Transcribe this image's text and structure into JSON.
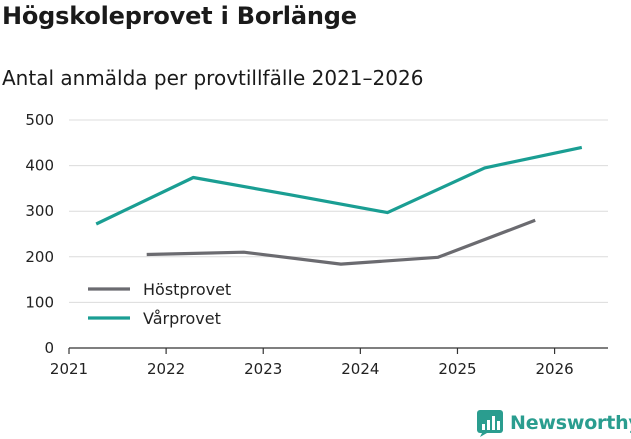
{
  "chart_data": {
    "type": "line",
    "title": "Högskoleprovet i Borlänge",
    "subtitle": "Antal anmälda per provtillfälle 2021–2026",
    "xlabel": "",
    "ylabel": "",
    "ylim": [
      0,
      500
    ],
    "yticks": [
      0,
      100,
      200,
      300,
      400,
      500
    ],
    "xlim": [
      2021,
      2026.55
    ],
    "xticks": [
      "2021",
      "2022",
      "2023",
      "2024",
      "2025",
      "2026"
    ],
    "grid": true,
    "legend_position": "bottom-left",
    "series": [
      {
        "name": "Höstprovet",
        "color": "#6b6b70",
        "x": [
          2021.8,
          2022.8,
          2023.8,
          2024.8,
          2025.8
        ],
        "values": [
          205,
          210,
          184,
          199,
          280
        ]
      },
      {
        "name": "Vårprovet",
        "color": "#1a9e93",
        "x": [
          2021.28,
          2022.28,
          2023.28,
          2024.28,
          2025.28,
          2026.28
        ],
        "values": [
          272,
          374,
          336,
          297,
          395,
          440
        ]
      }
    ]
  },
  "branding": {
    "logo_text": "Newsworthy",
    "logo_icon": "bar-chart-badge-icon",
    "color": "#2a9d8f"
  }
}
